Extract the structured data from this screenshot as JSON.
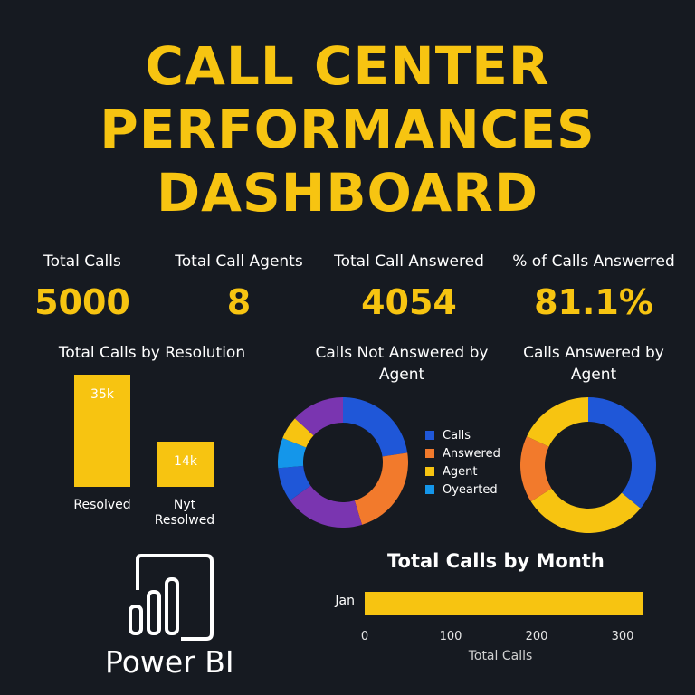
{
  "title_lines": [
    "CALL CENTER",
    "PERFORMANCES",
    "DASHBOARD"
  ],
  "kpis": [
    {
      "label": "Total Calls",
      "value": "5000"
    },
    {
      "label": "Total Call Agents",
      "value": "8"
    },
    {
      "label": "Total Call Answered",
      "value": "4054"
    },
    {
      "label": "% of Calls Answerred",
      "value": "81.1%"
    }
  ],
  "brand": {
    "name": "Power BI"
  },
  "colors": {
    "accent": "#f7c411",
    "background": "#161a21"
  },
  "chart_data": [
    {
      "type": "bar",
      "title": "Total Calls by Resolution",
      "categories": [
        "Resolved",
        "Nyt Resolwed"
      ],
      "values": [
        35000,
        14000
      ],
      "data_labels": [
        "35k",
        "14k"
      ]
    },
    {
      "type": "pie",
      "title": "Calls Not Answered by Agent",
      "legend": [
        {
          "label": "Calls",
          "color": "#1f57d8"
        },
        {
          "label": "Answered",
          "color": "#f27a2c"
        },
        {
          "label": "Agent",
          "color": "#f7c411"
        },
        {
          "label": "Oyearted",
          "color": "#1496ea"
        }
      ],
      "slices": [
        {
          "value": 24,
          "color": "#1f57d8"
        },
        {
          "value": 24,
          "color": "#f27a2c"
        },
        {
          "value": 21,
          "color": "#7a35b0"
        },
        {
          "value": 9,
          "color": "#1f57d8"
        },
        {
          "value": 8,
          "color": "#1496ea"
        },
        {
          "value": 6,
          "color": "#f7c411"
        },
        {
          "value": 14,
          "color": "#7a35b0"
        }
      ],
      "legend_position": "right"
    },
    {
      "type": "pie",
      "title": "Calls Answered by Agent",
      "slices": [
        {
          "value": 36,
          "color": "#1f57d8"
        },
        {
          "value": 30,
          "color": "#f7c411"
        },
        {
          "value": 16,
          "color": "#f27a2c"
        },
        {
          "value": 18,
          "color": "#f7c411"
        }
      ]
    },
    {
      "type": "bar",
      "orientation": "horizontal",
      "title": "Total Calls by Month",
      "categories": [
        "Jan"
      ],
      "values": [
        320
      ],
      "xlabel": "Total Calls",
      "xticks": [
        0,
        100,
        200,
        300
      ],
      "xlim": [
        0,
        340
      ]
    }
  ]
}
